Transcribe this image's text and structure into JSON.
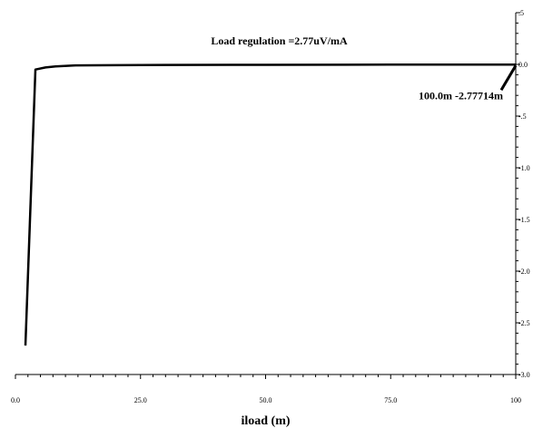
{
  "chart_data": {
    "type": "line",
    "title": "",
    "xlabel": "iload (m)",
    "ylabel": "",
    "xlim": [
      0,
      100
    ],
    "ylim": [
      -3.0,
      0.5
    ],
    "x_ticks": [
      0,
      25,
      50,
      75,
      100
    ],
    "x_tick_labels": [
      "0.0",
      "25.0",
      "50.0",
      "75.0",
      "100"
    ],
    "y_ticks": [
      0.5,
      0.0,
      -0.5,
      -1.0,
      -1.5,
      -2.0,
      -2.5,
      -3.0
    ],
    "y_tick_labels": [
      ".5",
      "0.0",
      "-.5",
      "-1.0",
      "-1.5",
      "-2.0",
      "-2.5",
      "-3.0"
    ],
    "series": [
      {
        "color": "#000000",
        "x": [
          2,
          4,
          6,
          8,
          12,
          20,
          30,
          50,
          75,
          100
        ],
        "y": [
          -2.72,
          -0.05,
          -0.03,
          -0.02,
          -0.01,
          -0.008,
          -0.005,
          -0.004,
          -0.003,
          -0.0028
        ]
      }
    ],
    "annotations": [
      {
        "text": "Load regulation =2.77uV/mA"
      },
      {
        "text": "100.0m -2.77714m",
        "x": 100,
        "y": -0.0028
      }
    ]
  }
}
